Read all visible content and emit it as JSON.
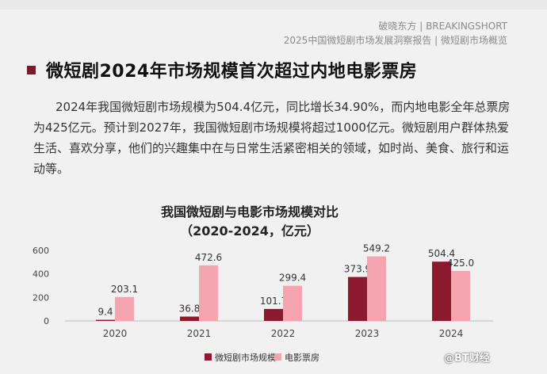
{
  "header": {
    "brand_line1": "破晓东方 | BREAKINGSHORT",
    "brand_line2": "2025中国微短剧市场发展洞察报告 | 微短剧市场概览"
  },
  "heading": "微短剧2024年市场规模首次超过内地电影票房",
  "paragraph": "2024年我国微短剧市场规模为504.4亿元，同比增长34.90%，而内地电影全年总票房为425亿元。预计到2027年，我国微短剧市场规模将超过1000亿元。微短剧用户群体热爱生活、喜欢分享，他们的兴趣集中在与日常生活紧密相关的领域，如时尚、美食、旅行和运动等。",
  "watermark": "@BT财经",
  "colors": {
    "accent": "#7a1a2a",
    "series_short": "#8b1a2e",
    "series_film": "#f4a5b0"
  },
  "chart_data": {
    "type": "bar",
    "title": "我国微短剧与电影市场规模对比",
    "subtitle": "（2020-2024，亿元）",
    "categories": [
      "2020",
      "2021",
      "2022",
      "2023",
      "2024"
    ],
    "series": [
      {
        "name": "微短剧市场规模",
        "values": [
          9.4,
          36.8,
          101.7,
          373.9,
          504.4
        ],
        "labels": [
          "9.4",
          "36.8",
          "101.7",
          "373.9",
          "504.4"
        ]
      },
      {
        "name": "电影票房",
        "values": [
          203.1,
          472.6,
          299.4,
          549.2,
          425.0
        ],
        "labels": [
          "203.1",
          "472.6",
          "299.4",
          "549.2",
          "425.0"
        ]
      }
    ],
    "yticks": [
      "0",
      "200",
      "400",
      "600"
    ],
    "ylim": [
      0,
      600
    ],
    "legend_position": "bottom",
    "grid": false
  }
}
